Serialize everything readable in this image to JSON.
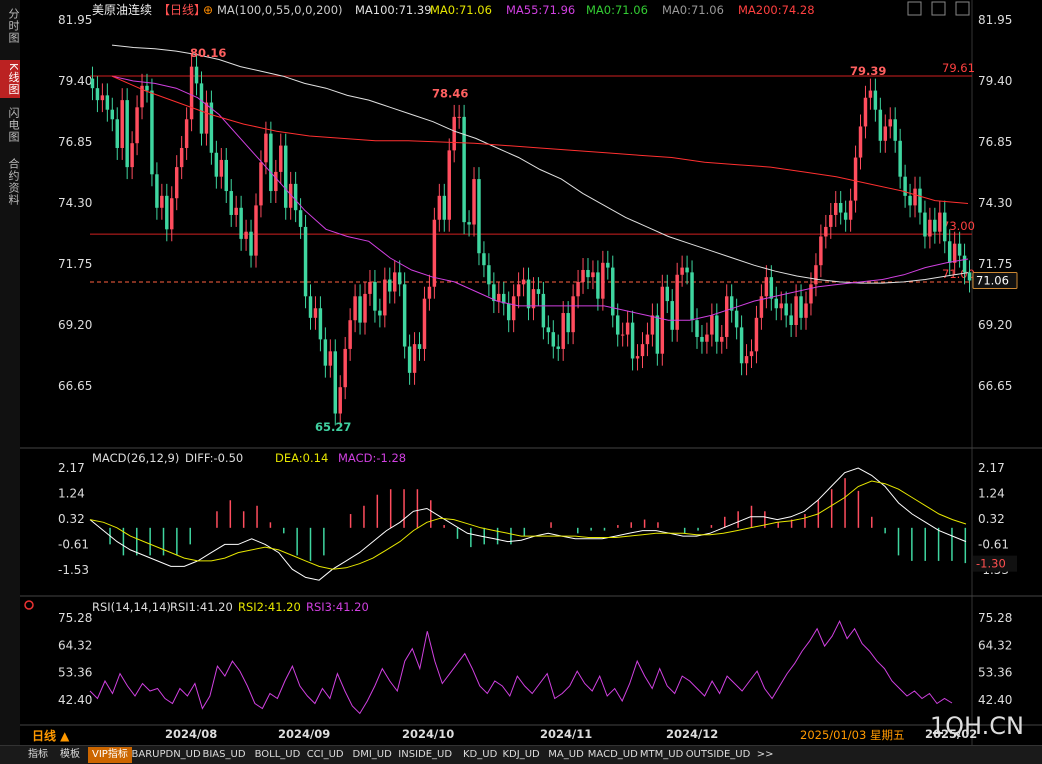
{
  "left_tabs": [
    {
      "label": "分时图",
      "active": false
    },
    {
      "label": "K线图",
      "active": true
    },
    {
      "label": "闪电图",
      "active": false
    },
    {
      "label": "合约资料",
      "active": false
    }
  ],
  "header": {
    "title": "美原油连续",
    "period": "【日线】",
    "ma_params": "MA(100,0,55,0,0,200)",
    "ma_values": [
      {
        "text": "MA100:71.39",
        "color": "#e0e0e0"
      },
      {
        "text": "MA0:71.06",
        "color": "#e6e600"
      },
      {
        "text": "MA55:71.96",
        "color": "#d040e0"
      },
      {
        "text": "MA0:71.06",
        "color": "#33cc33"
      },
      {
        "text": "MA0:71.06",
        "color": "#999999"
      },
      {
        "text": "MA200:74.28",
        "color": "#ff4040"
      }
    ]
  },
  "macd_header": {
    "name": "MACD(26,12,9)",
    "diff": "DIFF:-0.50",
    "dea": "DEA:0.14",
    "macd": "MACD:-1.28"
  },
  "rsi_header": {
    "name": "RSI(14,14,14)",
    "rsi1": "RSI1:41.20",
    "rsi2": "RSI2:41.20",
    "rsi3": "RSI3:41.20"
  },
  "price_axis": [
    "81.95",
    "79.40",
    "76.85",
    "74.30",
    "71.75",
    "69.20",
    "66.65"
  ],
  "macd_axis": [
    "2.17",
    "1.24",
    "0.32",
    "-0.61",
    "-1.53"
  ],
  "macd_last": "-1.30",
  "rsi_axis": [
    "75.28",
    "64.32",
    "53.36",
    "42.40"
  ],
  "last_price": "71.06",
  "x_labels": [
    "2024/08",
    "2024/09",
    "2024/10",
    "2024/11",
    "2024/12",
    "2025/02"
  ],
  "cursor_date": "2025/01/03 星期五",
  "period_label": "日线",
  "annotations": [
    {
      "text": "80.16",
      "color": "#ff6060"
    },
    {
      "text": "78.46",
      "color": "#ff6060"
    },
    {
      "text": "79.39",
      "color": "#ff6060"
    },
    {
      "text": "65.27",
      "color": "#40d0a0"
    }
  ],
  "hlines": [
    {
      "label": "79.61",
      "value": 79.61,
      "dashed": false
    },
    {
      "label": "73.00",
      "value": 73.0,
      "dashed": false
    },
    {
      "label": "71.00",
      "value": 71.0,
      "dashed": true
    }
  ],
  "bottom_tabs": [
    "指标",
    "模板",
    "VIP指标",
    "BARUPDN_UD",
    "BIAS_UD",
    "BOLL_UD",
    "CCI_UD",
    "DMI_UD",
    "INSIDE_UD",
    "KD_UD",
    "KDJ_UD",
    "MA_UD",
    "MACD_UD",
    "MTM_UD",
    "OUTSIDE_UD",
    ">>"
  ],
  "watermark": "1QH.CN",
  "colors": {
    "up": "#ff4d5e",
    "down": "#3fd6a0",
    "ma100": "#e0e0e0",
    "ma55": "#d040e0",
    "ma200": "#ff3030",
    "dea": "#e6e600",
    "rsi": "#d040e0"
  },
  "chart_data": {
    "type": "candlestick",
    "ylim": [
      65.3,
      81.95
    ],
    "closes": [
      79.1,
      78.6,
      78.8,
      78.2,
      77.8,
      76.6,
      78.6,
      75.8,
      76.8,
      78.3,
      79.2,
      79.0,
      75.5,
      74.1,
      74.6,
      73.2,
      74.5,
      75.8,
      76.6,
      77.8,
      80.0,
      79.3,
      77.2,
      78.5,
      76.4,
      75.4,
      76.1,
      74.8,
      73.8,
      74.1,
      72.8,
      73.1,
      72.1,
      74.2,
      76.0,
      77.2,
      74.8,
      75.6,
      76.7,
      74.1,
      75.1,
      74.0,
      73.3,
      70.4,
      69.5,
      69.9,
      68.6,
      67.5,
      68.1,
      65.5,
      66.6,
      68.2,
      69.4,
      70.4,
      69.3,
      70.5,
      71.0,
      69.8,
      69.6,
      71.1,
      70.6,
      71.4,
      70.9,
      68.3,
      67.2,
      68.4,
      68.2,
      70.3,
      70.8,
      73.6,
      74.6,
      73.6,
      76.5,
      77.9,
      77.9,
      73.5,
      73.4,
      75.3,
      72.2,
      71.7,
      70.9,
      70.2,
      70.5,
      70.1,
      69.4,
      70.4,
      70.9,
      71.1,
      69.9,
      70.7,
      70.5,
      69.1,
      68.9,
      68.3,
      68.2,
      69.7,
      68.9,
      70.4,
      71.0,
      71.5,
      71.2,
      71.4,
      70.3,
      71.8,
      71.6,
      69.6,
      68.8,
      68.8,
      69.3,
      67.8,
      67.9,
      68.4,
      68.8,
      69.6,
      68.0,
      70.8,
      70.2,
      69.0,
      71.3,
      71.6,
      71.4,
      69.4,
      68.7,
      68.5,
      68.8,
      69.6,
      68.5,
      68.7,
      70.4,
      69.8,
      69.1,
      67.6,
      67.9,
      68.1,
      69.5,
      70.4,
      71.2,
      70.3,
      69.9,
      70.1,
      69.6,
      69.2,
      70.4,
      69.5,
      70.1,
      70.9,
      71.7,
      72.9,
      73.3,
      73.8,
      74.3,
      73.9,
      73.6,
      74.4,
      76.2,
      77.5,
      78.7,
      79.0,
      78.2,
      76.9,
      77.5,
      77.8,
      76.9,
      75.4,
      74.6,
      74.2,
      74.9,
      73.9,
      72.9,
      73.6,
      73.1,
      73.9,
      72.7,
      71.8,
      72.6,
      72.1,
      71.4,
      71.06
    ],
    "highs_note": "",
    "ma100": [
      80.9,
      80.8,
      80.75,
      80.65,
      80.5,
      80.3,
      80.0,
      79.8,
      79.6,
      79.3,
      79.1,
      78.8,
      78.6,
      78.3,
      78.0,
      77.7,
      77.3,
      77.0,
      76.6,
      76.2,
      75.7,
      75.3,
      74.7,
      74.2,
      73.7,
      73.3,
      72.9,
      72.6,
      72.3,
      72.0,
      71.7,
      71.45,
      71.25,
      71.1,
      71.0,
      70.95,
      70.95,
      71.0,
      71.1,
      71.25,
      71.39
    ],
    "ma55": [
      79.6,
      79.4,
      79.3,
      79.1,
      78.7,
      78.0,
      77.0,
      76.0,
      75.0,
      74.0,
      73.2,
      72.9,
      72.7,
      72.0,
      71.5,
      71.2,
      71.0,
      70.6,
      70.2,
      70.0,
      70.0,
      70.0,
      70.0,
      70.0,
      69.8,
      69.6,
      69.4,
      69.4,
      69.6,
      69.9,
      70.2,
      70.4,
      70.6,
      70.8,
      70.9,
      71.0,
      71.1,
      71.3,
      71.6,
      71.8,
      71.96
    ],
    "ma200": [
      79.6,
      79.0,
      78.5,
      78.0,
      77.6,
      77.3,
      77.1,
      77.0,
      76.9,
      76.9,
      76.85,
      76.8,
      76.7,
      76.6,
      76.5,
      76.4,
      76.3,
      76.2,
      76.0,
      75.9,
      75.8,
      75.6,
      75.4,
      75.1,
      74.8,
      74.4,
      74.28
    ],
    "macd_diff": [
      0.3,
      -0.1,
      -0.5,
      -0.8,
      -1.0,
      -1.2,
      -1.4,
      -1.4,
      -1.2,
      -0.9,
      -0.6,
      -0.6,
      -0.4,
      -0.6,
      -0.9,
      -1.5,
      -1.8,
      -1.9,
      -1.5,
      -1.2,
      -0.9,
      -0.5,
      -0.1,
      0.2,
      0.6,
      0.7,
      0.4,
      0.1,
      -0.2,
      -0.3,
      -0.4,
      -0.5,
      -0.45,
      -0.3,
      -0.2,
      -0.3,
      -0.4,
      -0.4,
      -0.4,
      -0.3,
      -0.2,
      -0.1,
      -0.1,
      -0.2,
      -0.3,
      -0.3,
      -0.2,
      0.0,
      0.2,
      0.4,
      0.4,
      0.3,
      0.4,
      0.6,
      1.0,
      1.5,
      2.0,
      2.17,
      1.9,
      1.5,
      0.9,
      0.5,
      0.2,
      -0.1,
      -0.3,
      -0.5
    ],
    "macd_dea": [
      0.3,
      0.2,
      0.0,
      -0.3,
      -0.5,
      -0.7,
      -0.9,
      -1.1,
      -1.2,
      -1.2,
      -1.1,
      -0.9,
      -0.8,
      -0.7,
      -0.8,
      -1.0,
      -1.2,
      -1.4,
      -1.5,
      -1.45,
      -1.3,
      -1.1,
      -0.8,
      -0.5,
      -0.1,
      0.2,
      0.35,
      0.3,
      0.15,
      0.0,
      -0.1,
      -0.2,
      -0.3,
      -0.3,
      -0.3,
      -0.3,
      -0.3,
      -0.35,
      -0.35,
      -0.35,
      -0.3,
      -0.25,
      -0.2,
      -0.2,
      -0.2,
      -0.25,
      -0.25,
      -0.2,
      -0.1,
      0.0,
      0.1,
      0.2,
      0.25,
      0.35,
      0.5,
      0.8,
      1.1,
      1.5,
      1.7,
      1.6,
      1.4,
      1.1,
      0.8,
      0.5,
      0.3,
      0.14
    ],
    "rsi": [
      46,
      43,
      50,
      45,
      53,
      48,
      44,
      49,
      46,
      47,
      43,
      41,
      47,
      44,
      49,
      39,
      44,
      56,
      52,
      58,
      54,
      48,
      41,
      39,
      45,
      43,
      50,
      56,
      48,
      44,
      41,
      47,
      43,
      53,
      46,
      40,
      37,
      42,
      48,
      55,
      50,
      46,
      58,
      63,
      55,
      70,
      58,
      49,
      53,
      57,
      61,
      55,
      48,
      45,
      50,
      48,
      44,
      52,
      48,
      45,
      49,
      53,
      43,
      45,
      48,
      54,
      49,
      46,
      52,
      44,
      47,
      42,
      49,
      58,
      52,
      47,
      55,
      48,
      45,
      52,
      50,
      47,
      44,
      50,
      45,
      52,
      49,
      46,
      50,
      54,
      47,
      43,
      48,
      53,
      57,
      62,
      66,
      71,
      64,
      68,
      74,
      67,
      71,
      65,
      62,
      58,
      55,
      50,
      47,
      44,
      46,
      43,
      45,
      41,
      43,
      41.2
    ]
  }
}
